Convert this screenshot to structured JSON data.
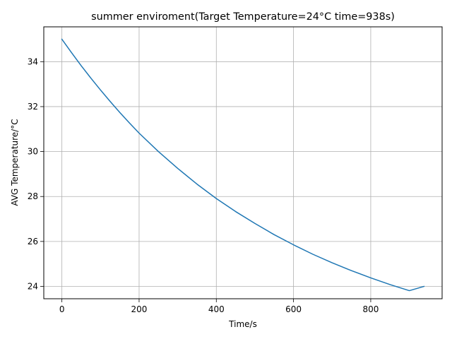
{
  "chart_data": {
    "type": "line",
    "title": "summer enviroment(Target Temperature=24°C time=938s)",
    "xlabel": "Time/s",
    "ylabel": "AVG Temperature/°C",
    "xlim": [
      -46.9,
      984.9
    ],
    "ylim": [
      23.45,
      35.55
    ],
    "xticks": [
      0,
      200,
      400,
      600,
      800
    ],
    "yticks": [
      24,
      26,
      28,
      30,
      32,
      34
    ],
    "xtick_labels": [
      "0",
      "200",
      "400",
      "600",
      "800"
    ],
    "ytick_labels": [
      "24",
      "26",
      "28",
      "30",
      "32",
      "34"
    ],
    "grid": true,
    "legend": "none",
    "series": [
      {
        "color": "#1f77b4",
        "x": [
          0,
          25,
          50,
          75,
          100,
          125,
          150,
          175,
          200,
          250,
          300,
          350,
          400,
          450,
          500,
          550,
          600,
          650,
          700,
          750,
          800,
          850,
          900,
          938
        ],
        "y": [
          35.0,
          34.4,
          33.82,
          33.27,
          32.74,
          32.23,
          31.74,
          31.27,
          30.82,
          30.0,
          29.25,
          28.55,
          27.91,
          27.33,
          26.8,
          26.3,
          25.85,
          25.43,
          25.05,
          24.7,
          24.38,
          24.08,
          23.81,
          24.0
        ]
      }
    ]
  }
}
